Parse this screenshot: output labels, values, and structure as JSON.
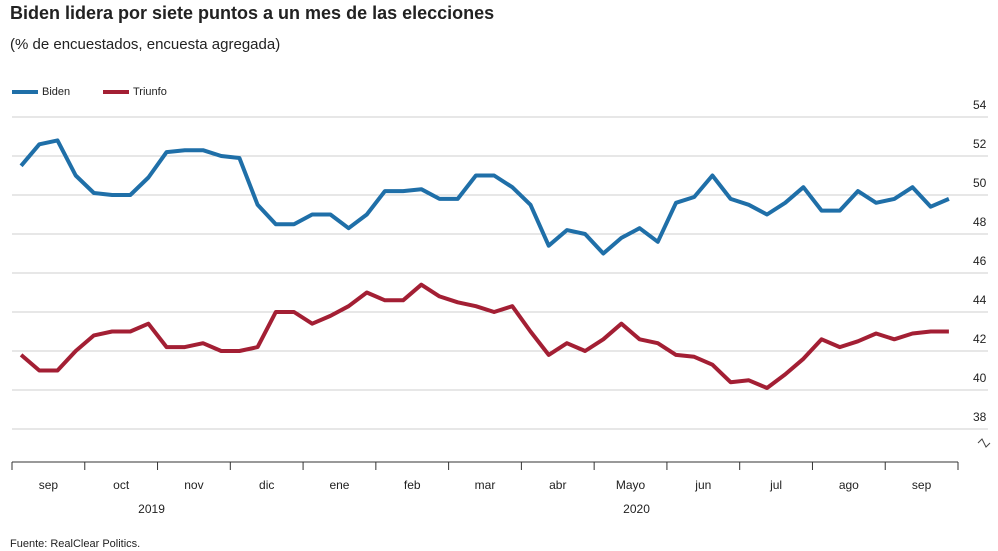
{
  "chart_data": {
    "type": "line",
    "title": "Biden lidera por siete puntos a un mes de las elecciones",
    "subtitle": "(% de encuestados, encuesta agregada)",
    "source": "Fuente: RealClear Politics.",
    "categories": [
      null,
      "sep",
      null,
      null,
      null,
      "oct",
      null,
      null,
      null,
      "nov",
      null,
      null,
      null,
      "dic",
      null,
      null,
      null,
      "ene",
      null,
      null,
      null,
      "feb",
      null,
      null,
      null,
      "mar",
      null,
      null,
      null,
      "abr",
      null,
      null,
      null,
      "Mayo",
      null,
      null,
      null,
      "jun",
      null,
      null,
      null,
      "jul",
      null,
      null,
      null,
      "ago",
      null,
      null,
      null,
      "sep",
      null,
      null
    ],
    "year_labels": [
      "2019",
      "2020"
    ],
    "series": [
      {
        "name": "Biden",
        "color": "#1f6fa8",
        "values": [
          51.5,
          52.6,
          52.8,
          51.0,
          50.1,
          50.0,
          50.0,
          50.9,
          52.2,
          52.3,
          52.3,
          52.0,
          51.9,
          49.5,
          48.5,
          48.5,
          49.0,
          49.0,
          48.3,
          49.0,
          50.2,
          50.2,
          50.3,
          49.8,
          49.8,
          51.0,
          51.0,
          50.4,
          49.5,
          47.4,
          48.2,
          48.0,
          47.0,
          47.8,
          48.3,
          47.6,
          49.6,
          49.9,
          51.0,
          49.8,
          49.5,
          49.0,
          49.6,
          50.4,
          49.2,
          49.2,
          50.2,
          49.6,
          49.8,
          50.4,
          49.4,
          49.8
        ]
      },
      {
        "name": "Triunfo",
        "color": "#a31f34",
        "values": [
          41.8,
          41.0,
          41.0,
          42.0,
          42.8,
          43.0,
          43.0,
          43.4,
          42.2,
          42.2,
          42.4,
          42.0,
          42.0,
          42.2,
          44.0,
          44.0,
          43.4,
          43.8,
          44.3,
          45.0,
          44.6,
          44.6,
          45.4,
          44.8,
          44.5,
          44.3,
          44.0,
          44.3,
          43.0,
          41.8,
          42.4,
          42.0,
          42.6,
          43.4,
          42.6,
          42.4,
          41.8,
          41.7,
          41.3,
          40.4,
          40.5,
          40.1,
          40.8,
          41.6,
          42.6,
          42.2,
          42.5,
          42.9,
          42.6,
          42.9,
          43.0,
          43.0
        ]
      }
    ],
    "ylim": [
      38,
      54
    ],
    "yticks": [
      38,
      40,
      42,
      44,
      46,
      48,
      50,
      52,
      54
    ],
    "grid": true
  }
}
